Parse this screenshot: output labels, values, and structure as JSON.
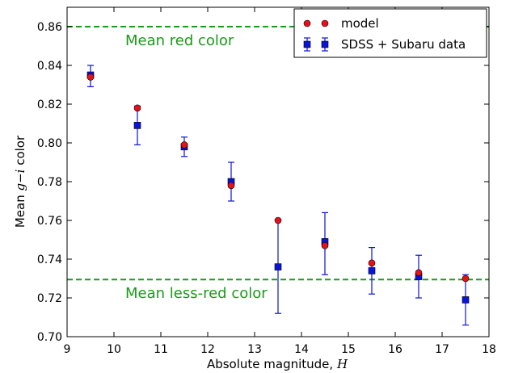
{
  "chart_data": {
    "type": "scatter",
    "xlabel_prefix": "Absolute magnitude, ",
    "xlabel_var": "H",
    "ylabel_prefix": "Mean ",
    "ylabel_var": "g−i",
    "ylabel_suffix": " color",
    "xlim": [
      9,
      18
    ],
    "ylim": [
      0.7,
      0.87
    ],
    "xticks": [
      9,
      10,
      11,
      12,
      13,
      14,
      15,
      16,
      17,
      18
    ],
    "yticks": [
      0.7,
      0.72,
      0.74,
      0.76,
      0.78,
      0.8,
      0.82,
      0.84,
      0.86
    ],
    "xtick_labels": [
      "9",
      "10",
      "11",
      "12",
      "13",
      "14",
      "15",
      "16",
      "17",
      "18"
    ],
    "ytick_labels": [
      "0.70",
      "0.72",
      "0.74",
      "0.76",
      "0.78",
      "0.80",
      "0.82",
      "0.84",
      "0.86"
    ],
    "grid": false,
    "legend_position": "top-right",
    "series": [
      {
        "name": "model",
        "marker": "circle",
        "color": "#e8101a",
        "x": [
          9.5,
          10.5,
          11.5,
          12.5,
          13.5,
          14.5,
          15.5,
          16.5,
          17.5
        ],
        "y": [
          0.834,
          0.818,
          0.799,
          0.778,
          0.76,
          0.747,
          0.738,
          0.733,
          0.73
        ]
      },
      {
        "name": "SDSS + Subaru data",
        "marker": "square",
        "color": "#0a14d6",
        "x": [
          9.5,
          10.5,
          11.5,
          12.5,
          13.5,
          14.5,
          15.5,
          16.5,
          17.5
        ],
        "y": [
          0.835,
          0.809,
          0.798,
          0.78,
          0.736,
          0.749,
          0.734,
          0.731,
          0.719
        ],
        "yerr_low": [
          0.829,
          0.799,
          0.793,
          0.77,
          0.712,
          0.732,
          0.722,
          0.72,
          0.706
        ],
        "yerr_high": [
          0.84,
          0.819,
          0.803,
          0.79,
          0.76,
          0.764,
          0.746,
          0.742,
          0.732
        ]
      }
    ],
    "reference_lines": [
      {
        "label": "Mean red color",
        "y": 0.86,
        "color": "#1a9a1a"
      },
      {
        "label": "Mean less-red color",
        "y": 0.7295,
        "color": "#1a9a1a"
      }
    ]
  }
}
